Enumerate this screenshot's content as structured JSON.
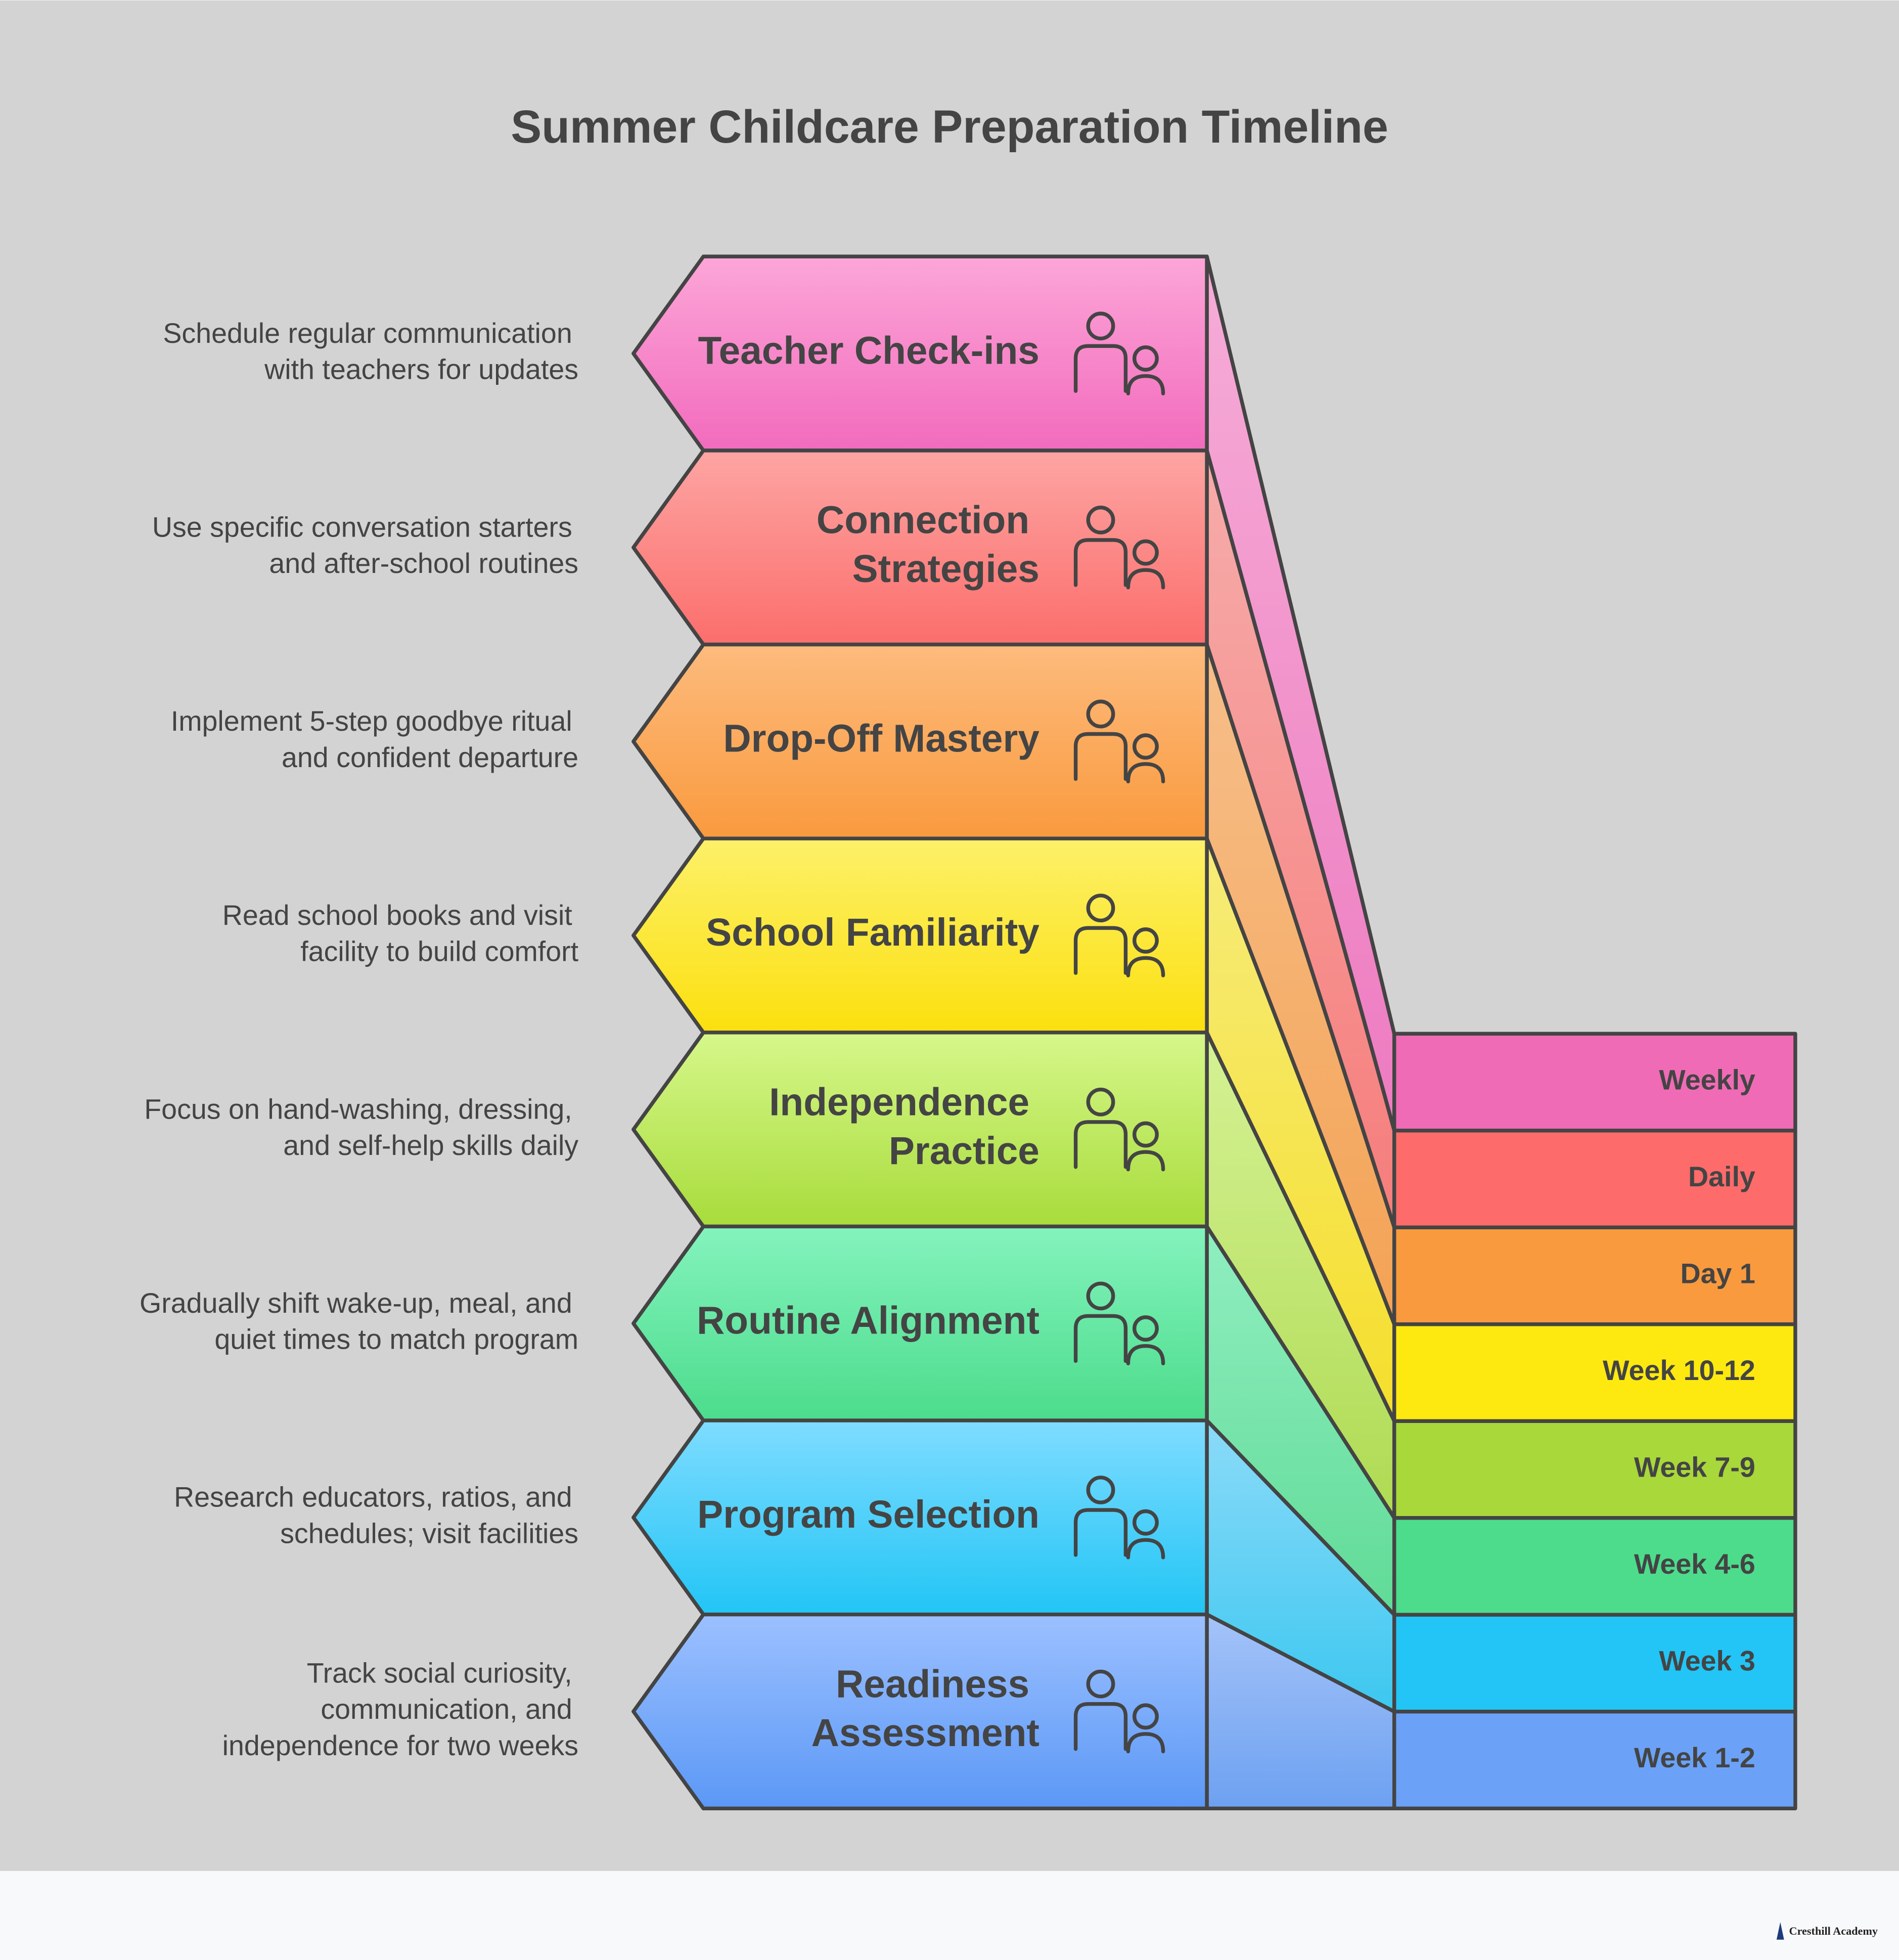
{
  "title": "Summer Childcare Preparation Timeline",
  "steps": [
    {
      "label": [
        "Teacher Check-ins"
      ],
      "description": [
        "Schedule regular communication",
        "with teachers for updates"
      ],
      "timing": "Weekly"
    },
    {
      "label": [
        "Connection",
        "Strategies"
      ],
      "description": [
        "Use specific conversation starters",
        "and after-school routines"
      ],
      "timing": "Daily"
    },
    {
      "label": [
        "Drop-Off Mastery"
      ],
      "description": [
        "Implement 5-step goodbye ritual",
        "and confident departure"
      ],
      "timing": "Day 1"
    },
    {
      "label": [
        "School Familiarity"
      ],
      "description": [
        "Read school books and visit",
        "facility to build comfort"
      ],
      "timing": "Week 10-12"
    },
    {
      "label": [
        "Independence",
        "Practice"
      ],
      "description": [
        "Focus on hand-washing, dressing,",
        "and self-help skills daily"
      ],
      "timing": "Week 7-9"
    },
    {
      "label": [
        "Routine Alignment"
      ],
      "description": [
        "Gradually shift wake-up, meal, and",
        "quiet times to match program"
      ],
      "timing": "Week 4-6"
    },
    {
      "label": [
        "Program Selection"
      ],
      "description": [
        "Research educators, ratios, and",
        "schedules; visit facilities"
      ],
      "timing": "Week 3"
    },
    {
      "label": [
        "Readiness",
        "Assessment"
      ],
      "description": [
        "Track social curiosity,",
        "communication, and",
        "independence for two weeks"
      ],
      "timing": "Week 1-2"
    }
  ],
  "footer": "Cresthill Academy"
}
